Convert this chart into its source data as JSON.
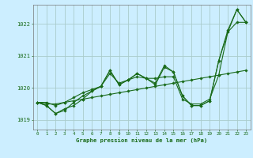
{
  "background_color": "#cceeff",
  "grid_color": "#aacccc",
  "line_color": "#1a6b1a",
  "xlabel": "Graphe pression niveau de la mer (hPa)",
  "ylim": [
    1018.7,
    1022.6
  ],
  "xlim": [
    -0.5,
    23.5
  ],
  "yticks": [
    1019,
    1020,
    1021,
    1022
  ],
  "xticks": [
    0,
    1,
    2,
    3,
    4,
    5,
    6,
    7,
    8,
    9,
    10,
    11,
    12,
    13,
    14,
    15,
    16,
    17,
    18,
    19,
    20,
    21,
    22,
    23
  ],
  "series": [
    [
      1019.55,
      1019.55,
      1019.45,
      1019.55,
      1019.7,
      1019.85,
      1019.95,
      1020.05,
      1020.45,
      1020.15,
      1020.25,
      1020.35,
      1020.3,
      1020.3,
      1020.35,
      1020.35,
      1019.65,
      1019.5,
      1019.5,
      1019.65,
      1020.4,
      1021.75,
      1022.05,
      1022.05
    ],
    [
      1019.55,
      1019.45,
      1019.2,
      1019.3,
      1019.55,
      1019.75,
      1019.9,
      1020.05,
      1020.55,
      1020.1,
      1020.25,
      1020.45,
      1020.3,
      1020.1,
      1020.65,
      1020.5,
      1019.75,
      1019.45,
      1019.45,
      1019.6,
      1020.85,
      1021.75,
      1022.45,
      1022.05
    ],
    [
      1019.55,
      1019.45,
      1019.2,
      1019.35,
      1019.45,
      1019.65,
      1019.9,
      1020.05,
      1020.55,
      1020.1,
      1020.25,
      1020.45,
      1020.3,
      1020.15,
      1020.7,
      1020.5,
      1019.75,
      1019.45,
      1019.45,
      1019.6,
      1020.85,
      1021.8,
      1022.45,
      1022.05
    ],
    [
      1019.55,
      1019.5,
      1019.5,
      1019.55,
      1019.6,
      1019.65,
      1019.7,
      1019.75,
      1019.8,
      1019.85,
      1019.9,
      1019.95,
      1020.0,
      1020.05,
      1020.1,
      1020.15,
      1020.2,
      1020.25,
      1020.3,
      1020.35,
      1020.4,
      1020.45,
      1020.5,
      1020.55
    ]
  ]
}
